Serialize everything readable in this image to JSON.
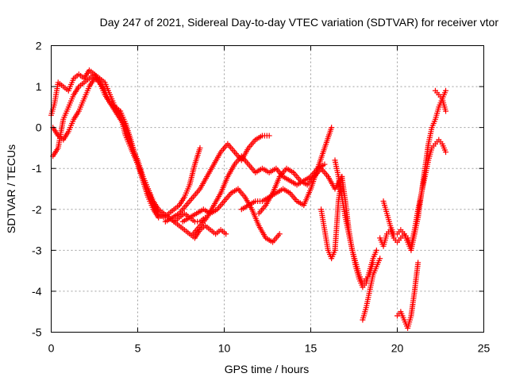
{
  "chart_data": {
    "type": "scatter",
    "title": "Day 247 of 2021, Sidereal Day-to-day VTEC variation (SDTVAR) for receiver vtor",
    "xlabel": "GPS time / hours",
    "ylabel": "SDTVAR / TECUs",
    "xlim": [
      0,
      25
    ],
    "ylim": [
      -5,
      2
    ],
    "xticks": [
      "0",
      "5",
      "10",
      "15",
      "20",
      "25"
    ],
    "yticks": [
      "-5",
      "-4",
      "-3",
      "-2",
      "-1",
      "0",
      "1",
      "2"
    ],
    "grid": true,
    "marker": "plus",
    "color": "#ff0000",
    "series": [
      {
        "x": [
          0.0,
          0.2,
          0.4,
          0.7,
          1.0,
          1.3,
          1.6,
          1.9,
          2.2,
          2.5,
          2.8,
          3.1,
          3.4,
          3.7,
          4.0,
          4.3,
          4.6,
          5.0,
          5.3,
          5.6,
          5.9,
          6.2,
          6.5,
          6.8,
          7.1,
          7.4,
          7.7,
          8.0,
          8.3,
          8.6,
          8.9,
          9.2,
          9.5,
          9.8,
          10.1
        ],
        "y": [
          0.3,
          0.6,
          1.1,
          1.0,
          0.9,
          1.2,
          1.3,
          1.2,
          1.4,
          1.3,
          1.2,
          1.1,
          0.8,
          0.5,
          0.3,
          -0.2,
          -0.5,
          -0.9,
          -1.2,
          -1.5,
          -1.8,
          -2.0,
          -2.1,
          -2.2,
          -2.3,
          -2.4,
          -2.5,
          -2.6,
          -2.7,
          -2.5,
          -2.4,
          -2.5,
          -2.6,
          -2.5,
          -2.6
        ]
      },
      {
        "x": [
          0.1,
          0.4,
          0.7,
          1.0,
          1.3,
          1.6,
          1.9,
          2.2,
          2.5,
          2.8,
          3.1,
          3.4,
          3.7,
          4.0,
          4.3,
          4.6,
          5.0,
          5.3,
          5.6,
          5.9,
          6.2,
          6.5,
          6.8,
          7.1,
          7.4,
          7.7,
          8.0,
          8.3,
          8.6
        ],
        "y": [
          0.0,
          -0.2,
          -0.3,
          -0.1,
          0.2,
          0.4,
          0.7,
          1.0,
          1.2,
          1.1,
          0.9,
          0.6,
          0.4,
          0.2,
          0.0,
          -0.4,
          -0.8,
          -1.2,
          -1.5,
          -1.9,
          -2.1,
          -2.2,
          -2.1,
          -2.0,
          -1.9,
          -1.7,
          -1.4,
          -0.9,
          -0.5
        ]
      },
      {
        "x": [
          0.1,
          0.4,
          0.7,
          1.0,
          1.3,
          1.6,
          1.9,
          2.2,
          2.5,
          2.8,
          3.1,
          3.4,
          3.7,
          4.0,
          4.3,
          4.6,
          5.0,
          5.3,
          5.6,
          5.9,
          6.2,
          6.5,
          6.8,
          7.1,
          7.4,
          7.7,
          8.0,
          8.3,
          8.6,
          8.9
        ],
        "y": [
          -0.7,
          -0.5,
          0.2,
          0.5,
          0.8,
          1.0,
          1.1,
          1.2,
          1.3,
          1.1,
          0.8,
          0.6,
          0.5,
          0.4,
          0.1,
          -0.3,
          -0.9,
          -1.3,
          -1.7,
          -2.0,
          -2.2,
          -2.1,
          -2.2,
          -2.3,
          -2.2,
          -2.1,
          -2.2,
          -2.3,
          -2.3,
          -2.2
        ]
      },
      {
        "x": [
          6.6,
          7.0,
          7.4,
          7.8,
          8.2,
          8.6,
          9.0,
          9.4,
          9.8,
          10.2,
          10.6,
          11.0,
          11.4,
          11.8,
          12.2,
          12.6
        ],
        "y": [
          -2.3,
          -2.2,
          -2.1,
          -1.9,
          -1.7,
          -1.5,
          -1.2,
          -0.9,
          -0.6,
          -0.4,
          -0.6,
          -0.8,
          -0.5,
          -0.3,
          -0.2,
          -0.2
        ]
      },
      {
        "x": [
          7.6,
          8.0,
          8.4,
          8.8,
          9.2,
          9.6,
          10.0,
          10.4,
          10.8,
          11.2,
          11.6,
          12.0,
          12.4,
          12.8,
          13.2
        ],
        "y": [
          -2.3,
          -2.2,
          -2.1,
          -2.0,
          -2.1,
          -2.0,
          -1.8,
          -1.6,
          -1.5,
          -1.7,
          -2.0,
          -2.4,
          -2.7,
          -2.8,
          -2.6
        ]
      },
      {
        "x": [
          8.2,
          8.6,
          9.0,
          9.4,
          9.8,
          10.2,
          10.6,
          11.0,
          11.4,
          11.8,
          12.2,
          12.6,
          13.0,
          13.4,
          13.8,
          14.2,
          14.6,
          15.0,
          15.4,
          15.8
        ],
        "y": [
          -2.6,
          -2.4,
          -2.2,
          -1.9,
          -1.6,
          -1.2,
          -0.9,
          -0.7,
          -0.9,
          -1.1,
          -1.0,
          -1.1,
          -1.0,
          -1.2,
          -1.3,
          -1.4,
          -1.3,
          -1.2,
          -1.0,
          -0.9
        ]
      },
      {
        "x": [
          11.0,
          11.4,
          11.8,
          12.2,
          12.6,
          13.0,
          13.4,
          13.8,
          14.2,
          14.6,
          15.0,
          15.4,
          15.8,
          16.2
        ],
        "y": [
          -2.0,
          -1.9,
          -1.8,
          -1.8,
          -1.7,
          -1.6,
          -1.5,
          -1.6,
          -1.8,
          -1.9,
          -1.5,
          -1.0,
          -0.5,
          0.0
        ]
      },
      {
        "x": [
          12.0,
          12.4,
          12.8,
          13.2,
          13.6,
          14.0,
          14.4,
          14.8,
          15.2,
          15.6,
          16.0,
          16.4,
          16.8
        ],
        "y": [
          -2.1,
          -1.9,
          -1.6,
          -1.2,
          -1.0,
          -1.1,
          -1.3,
          -1.4,
          -1.2,
          -1.0,
          -1.2,
          -1.5,
          -1.2
        ]
      },
      {
        "x": [
          15.6,
          15.8,
          16.0,
          16.2,
          16.4,
          16.6,
          16.8,
          17.0,
          17.2,
          17.4,
          17.6,
          17.8,
          18.0,
          18.2,
          18.4,
          18.6
        ],
        "y": [
          -2.0,
          -2.5,
          -3.0,
          -3.2,
          -3.0,
          -1.8,
          -1.2,
          -1.8,
          -2.5,
          -3.0,
          -3.3,
          -3.6,
          -3.8,
          -3.7,
          -3.6,
          -3.3
        ]
      },
      {
        "x": [
          16.4,
          16.6,
          16.8,
          17.0,
          17.2,
          17.4,
          17.6,
          17.8,
          18.0,
          18.2,
          18.4,
          18.6,
          18.8
        ],
        "y": [
          -0.8,
          -1.2,
          -1.7,
          -2.2,
          -2.6,
          -3.0,
          -3.4,
          -3.7,
          -3.9,
          -3.8,
          -3.5,
          -3.2,
          -3.0
        ]
      },
      {
        "x": [
          18.0,
          18.2,
          18.4,
          18.6,
          18.8,
          19.0
        ],
        "y": [
          -4.7,
          -4.4,
          -4.0,
          -3.6,
          -3.4,
          -3.2
        ]
      },
      {
        "x": [
          19.0,
          19.2,
          19.4,
          19.6,
          19.8,
          20.0,
          20.2,
          20.4,
          20.6,
          20.8,
          21.0,
          21.2,
          21.4,
          21.6,
          21.8,
          22.0,
          22.2,
          22.4,
          22.6,
          22.8
        ],
        "y": [
          -2.7,
          -2.9,
          -2.6,
          -2.5,
          -2.7,
          -2.8,
          -2.7,
          -2.6,
          -2.7,
          -2.9,
          -2.5,
          -2.0,
          -1.6,
          -1.2,
          -0.8,
          -0.5,
          -0.4,
          -0.3,
          -0.4,
          -0.6
        ]
      },
      {
        "x": [
          19.2,
          19.4,
          19.6,
          19.8,
          20.0,
          20.2,
          20.4,
          20.6,
          20.8,
          21.0,
          21.2,
          21.4,
          21.6,
          21.8,
          22.0,
          22.2,
          22.4,
          22.6,
          22.8
        ],
        "y": [
          -1.8,
          -2.1,
          -2.4,
          -2.6,
          -2.6,
          -2.5,
          -2.6,
          -2.8,
          -3.0,
          -2.6,
          -2.2,
          -1.6,
          -1.0,
          -0.4,
          0.0,
          0.2,
          0.5,
          0.7,
          0.9
        ]
      },
      {
        "x": [
          20.0,
          20.2,
          20.4,
          20.6,
          20.8,
          21.0,
          21.2
        ],
        "y": [
          -4.6,
          -4.5,
          -4.7,
          -4.9,
          -4.6,
          -4.0,
          -3.3
        ]
      },
      {
        "x": [
          22.2,
          22.4,
          22.6,
          22.8
        ],
        "y": [
          0.9,
          0.8,
          0.7,
          0.4
        ]
      }
    ]
  }
}
